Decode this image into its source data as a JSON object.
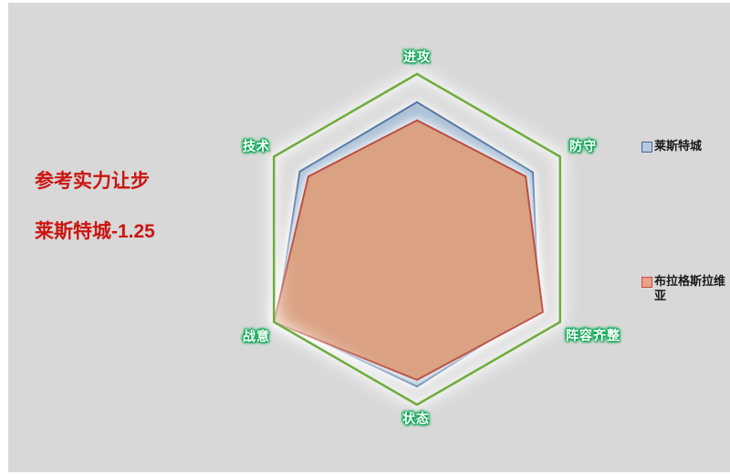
{
  "page": {
    "background": "#d8d8d8"
  },
  "annotation": {
    "line1": "参考实力让步",
    "line2": "莱斯特城-1.25",
    "color": "#cc1410"
  },
  "legend": {
    "items": [
      {
        "label": "莱斯特城",
        "fill": "#b7c9de",
        "border": "#46629b"
      },
      {
        "label": "布拉格斯拉维亚",
        "fill": "#eba189",
        "border": "#c8473b"
      }
    ]
  },
  "chart_data": {
    "type": "radar",
    "title": "",
    "categories": [
      "进攻",
      "防守",
      "阵容齐整",
      "状态",
      "战意",
      "技术"
    ],
    "max": 1,
    "grid": "single-hex-ring, no spokes",
    "legend_position": "right",
    "outline_color": "#6fae3e",
    "axis_label_color": "#ffffff",
    "axis_label_glow": "#00a74f",
    "series": [
      {
        "name": "莱斯特城",
        "values": [
          0.83,
          0.81,
          0.85,
          0.89,
          0.98,
          0.82
        ],
        "fill": "#abc0d6",
        "fill_opacity": 1,
        "stroke": "#4e74a2"
      },
      {
        "name": "布拉格斯拉维亚",
        "values": [
          0.72,
          0.76,
          0.88,
          0.85,
          1.0,
          0.76
        ],
        "fill": "#d79a77",
        "fill_opacity": 0.92,
        "stroke": "#bd4f43"
      }
    ]
  }
}
